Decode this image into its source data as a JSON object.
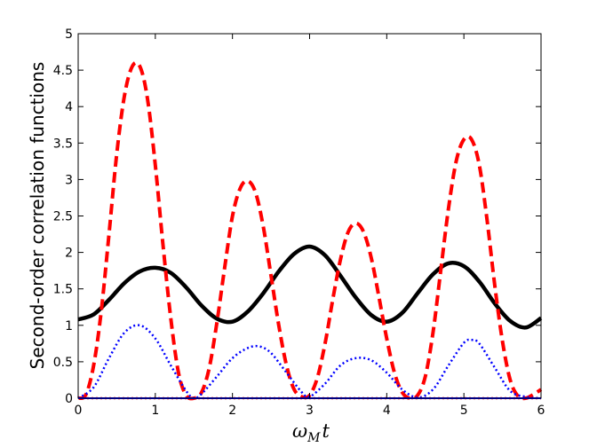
{
  "chart_data": {
    "type": "line",
    "title": "",
    "xlabel": {
      "main": "ω",
      "sub": "M",
      "tail": "t"
    },
    "ylabel": "Second-order correlation functions",
    "xlim": [
      0,
      6
    ],
    "ylim": [
      0,
      5
    ],
    "xticks": [
      "0",
      "1",
      "2",
      "3",
      "4",
      "5",
      "6"
    ],
    "yticks": [
      "0",
      "0.5",
      "1",
      "1.5",
      "2",
      "2.5",
      "3",
      "3.5",
      "4",
      "4.5",
      "5"
    ],
    "grid": false,
    "legend": "none",
    "series": [
      {
        "color": "#000000",
        "style": "solid",
        "x": [
          0,
          0.2,
          0.4,
          0.6,
          0.8,
          1.0,
          1.2,
          1.4,
          1.6,
          1.8,
          2.0,
          2.2,
          2.4,
          2.6,
          2.8,
          3.0,
          3.2,
          3.4,
          3.6,
          3.8,
          4.0,
          4.2,
          4.4,
          4.6,
          4.8,
          5.0,
          5.2,
          5.4,
          5.6,
          5.8,
          6.0
        ],
        "y": [
          1.08,
          1.15,
          1.35,
          1.58,
          1.74,
          1.79,
          1.72,
          1.52,
          1.27,
          1.09,
          1.05,
          1.19,
          1.44,
          1.74,
          1.98,
          2.08,
          1.96,
          1.68,
          1.38,
          1.14,
          1.05,
          1.17,
          1.44,
          1.7,
          1.85,
          1.81,
          1.6,
          1.3,
          1.06,
          0.97,
          1.1
        ]
      },
      {
        "color": "#ff0000",
        "style": "dashed",
        "x": [
          0,
          0.1,
          0.2,
          0.3,
          0.4,
          0.5,
          0.6,
          0.7,
          0.8,
          0.9,
          1.0,
          1.1,
          1.2,
          1.3,
          1.4,
          1.5,
          1.6,
          1.7,
          1.8,
          1.9,
          2.0,
          2.1,
          2.2,
          2.3,
          2.4,
          2.5,
          2.6,
          2.7,
          2.8,
          2.9,
          3.0,
          3.1,
          3.2,
          3.3,
          3.4,
          3.5,
          3.6,
          3.7,
          3.8,
          3.9,
          4.0,
          4.1,
          4.2,
          4.3,
          4.4,
          4.5,
          4.6,
          4.7,
          4.8,
          4.9,
          5.0,
          5.1,
          5.2,
          5.3,
          5.4,
          5.5,
          5.6,
          5.7,
          5.8,
          5.9,
          6.0
        ],
        "y": [
          0,
          0.05,
          0.45,
          1.2,
          2.25,
          3.35,
          4.15,
          4.55,
          4.55,
          4.1,
          3.2,
          2.1,
          1.1,
          0.35,
          0.04,
          0,
          0.08,
          0.42,
          1.05,
          1.8,
          2.5,
          2.88,
          2.98,
          2.82,
          2.35,
          1.68,
          1.0,
          0.45,
          0.12,
          0.02,
          0.04,
          0.28,
          0.75,
          1.35,
          1.9,
          2.28,
          2.4,
          2.28,
          1.92,
          1.38,
          0.82,
          0.35,
          0.08,
          0,
          0.04,
          0.3,
          0.9,
          1.75,
          2.6,
          3.25,
          3.55,
          3.55,
          3.2,
          2.45,
          1.55,
          0.78,
          0.25,
          0.03,
          0,
          0.05,
          0.12
        ]
      },
      {
        "color": "#0000ff",
        "style": "dotted",
        "x": [
          0,
          0.2,
          0.4,
          0.6,
          0.8,
          1.0,
          1.2,
          1.4,
          1.5,
          1.6,
          1.8,
          2.0,
          2.2,
          2.35,
          2.5,
          2.7,
          2.9,
          3.0,
          3.2,
          3.4,
          3.6,
          3.8,
          4.0,
          4.2,
          4.4,
          4.6,
          4.8,
          5.0,
          5.1,
          5.2,
          5.4,
          5.6,
          5.8,
          6.0
        ],
        "y": [
          0,
          0.15,
          0.55,
          0.9,
          1.0,
          0.82,
          0.45,
          0.1,
          0,
          0.06,
          0.3,
          0.55,
          0.69,
          0.71,
          0.62,
          0.35,
          0.08,
          0.02,
          0.2,
          0.45,
          0.55,
          0.52,
          0.35,
          0.12,
          0.01,
          0.12,
          0.45,
          0.76,
          0.8,
          0.75,
          0.42,
          0.1,
          0.02,
          0
        ]
      },
      {
        "color": "#ff0000",
        "style": "dotted",
        "x": [
          0,
          6
        ],
        "y": [
          0,
          0
        ]
      },
      {
        "color": "#0000ff",
        "style": "solid",
        "x": [
          0,
          6
        ],
        "y": [
          0,
          0
        ]
      }
    ]
  }
}
